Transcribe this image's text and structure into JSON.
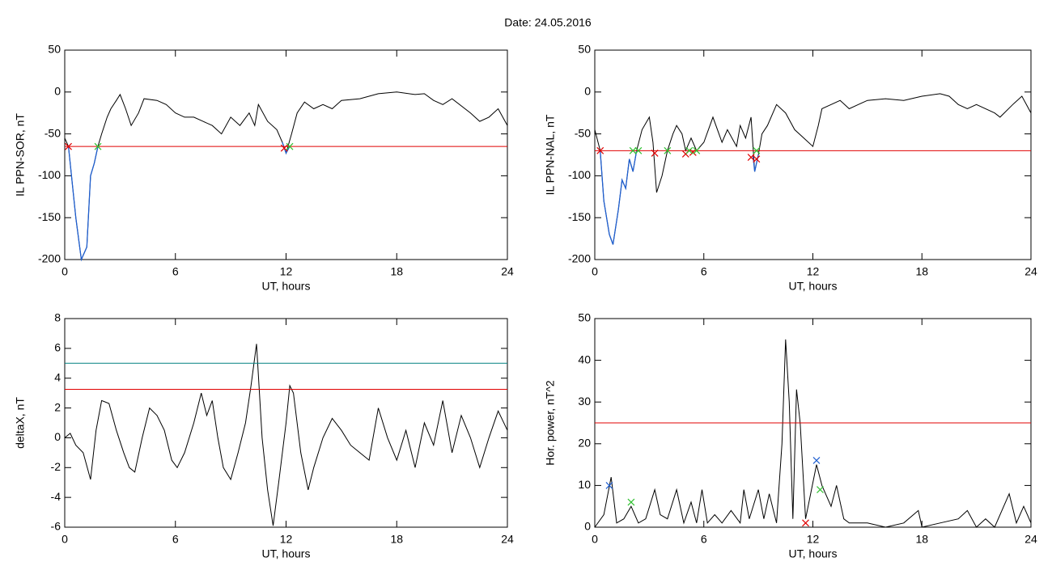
{
  "title": "Date:  24.05.2016",
  "chart_data": [
    {
      "type": "line",
      "xlabel": "UT, hours",
      "ylabel": "IL PPN-SOR, nT",
      "xlim": [
        0,
        24
      ],
      "ylim": [
        -200,
        50
      ],
      "xticks": [
        0,
        6,
        12,
        18,
        24
      ],
      "yticks": [
        -200,
        -150,
        -100,
        -50,
        0,
        50
      ],
      "x": [
        0,
        0.2,
        0.6,
        0.9,
        1.2,
        1.4,
        1.6,
        1.8,
        2.0,
        2.3,
        2.5,
        2.8,
        3.0,
        3.3,
        3.6,
        4.0,
        4.3,
        5.0,
        5.5,
        6.0,
        6.5,
        7.0,
        7.5,
        8.0,
        8.5,
        9.0,
        9.5,
        10.0,
        10.3,
        10.5,
        11.0,
        11.5,
        11.8,
        12.0,
        12.3,
        12.6,
        13.0,
        13.5,
        14.0,
        14.5,
        15.0,
        16.0,
        17.0,
        18.0,
        19.0,
        19.5,
        20.0,
        20.5,
        21.0,
        22.0,
        22.5,
        23.0,
        23.5,
        24.0
      ],
      "series": [
        {
          "color": "#000000",
          "values": [
            -55,
            -65,
            -150,
            -200,
            -185,
            -100,
            -85,
            -65,
            -50,
            -30,
            -20,
            -10,
            -3,
            -20,
            -40,
            -25,
            -8,
            -10,
            -15,
            -25,
            -30,
            -30,
            -35,
            -40,
            -50,
            -30,
            -40,
            -25,
            -40,
            -15,
            -35,
            -45,
            -60,
            -73,
            -50,
            -25,
            -12,
            -20,
            -15,
            -20,
            -10,
            -8,
            -2,
            0,
            -3,
            -2,
            -10,
            -15,
            -8,
            -25,
            -35,
            -30,
            -20,
            -40
          ]
        },
        {
          "color": "#1f5fd0",
          "x": [
            0.2,
            0.6,
            0.9,
            1.2,
            1.4,
            1.6,
            1.8
          ],
          "values": [
            -65,
            -150,
            -200,
            -185,
            -100,
            -85,
            -65
          ]
        },
        {
          "color": "#1f5fd0",
          "x": [
            11.8,
            12.0,
            12.2
          ],
          "values": [
            -60,
            -73,
            -65
          ]
        }
      ],
      "hlines": [
        {
          "value": -65,
          "color": "#e00000"
        }
      ],
      "markers": [
        {
          "color": "#e00000",
          "x": [
            0.2,
            11.9
          ],
          "values": [
            -65,
            -67
          ]
        },
        {
          "color": "#30c030",
          "x": [
            1.8,
            12.2
          ],
          "values": [
            -65,
            -65
          ]
        }
      ]
    },
    {
      "type": "line",
      "xlabel": "UT, hours",
      "ylabel": "IL PPN-NAL, nT",
      "xlim": [
        0,
        24
      ],
      "ylim": [
        -200,
        50
      ],
      "xticks": [
        0,
        6,
        12,
        18,
        24
      ],
      "yticks": [
        -200,
        -150,
        -100,
        -50,
        0,
        50
      ],
      "x": [
        0,
        0.3,
        0.5,
        0.8,
        1.0,
        1.3,
        1.5,
        1.7,
        1.9,
        2.1,
        2.3,
        2.6,
        3.0,
        3.2,
        3.4,
        3.7,
        4.0,
        4.3,
        4.5,
        4.8,
        5.0,
        5.3,
        5.6,
        6.0,
        6.5,
        7.0,
        7.3,
        7.8,
        8.0,
        8.3,
        8.6,
        8.8,
        9.0,
        9.2,
        9.5,
        10.0,
        10.5,
        11.0,
        11.5,
        12.0,
        12.3,
        12.5,
        13.0,
        13.5,
        14.0,
        14.5,
        15.0,
        16.0,
        17.0,
        18.0,
        19.0,
        19.5,
        20.0,
        20.5,
        21.0,
        22.0,
        22.3,
        23.0,
        23.5,
        24.0
      ],
      "series": [
        {
          "color": "#000000",
          "values": [
            -45,
            -70,
            -130,
            -170,
            -182,
            -140,
            -105,
            -115,
            -80,
            -95,
            -70,
            -45,
            -30,
            -60,
            -120,
            -100,
            -70,
            -50,
            -40,
            -50,
            -70,
            -55,
            -70,
            -60,
            -30,
            -60,
            -45,
            -65,
            -40,
            -55,
            -30,
            -95,
            -75,
            -50,
            -40,
            -15,
            -25,
            -45,
            -55,
            -65,
            -40,
            -20,
            -15,
            -10,
            -20,
            -15,
            -10,
            -8,
            -10,
            -5,
            -2,
            -5,
            -15,
            -20,
            -15,
            -25,
            -30,
            -15,
            -5,
            -25
          ]
        },
        {
          "color": "#1f5fd0",
          "x": [
            0.3,
            0.5,
            0.8,
            1.0,
            1.3,
            1.5,
            1.7,
            1.9,
            2.1,
            2.3
          ],
          "values": [
            -70,
            -130,
            -170,
            -182,
            -140,
            -105,
            -115,
            -80,
            -95,
            -70
          ]
        },
        {
          "color": "#1f5fd0",
          "x": [
            8.7,
            8.8,
            9.0
          ],
          "values": [
            -75,
            -95,
            -75
          ]
        }
      ],
      "hlines": [
        {
          "value": -70,
          "color": "#e00000"
        }
      ],
      "markers": [
        {
          "color": "#e00000",
          "x": [
            0.3,
            3.3,
            5.0,
            5.4,
            8.6,
            8.9
          ],
          "values": [
            -70,
            -73,
            -74,
            -72,
            -78,
            -80
          ]
        },
        {
          "color": "#30c030",
          "x": [
            2.1,
            2.4,
            4.0,
            5.2,
            5.6,
            8.9
          ],
          "values": [
            -70,
            -70,
            -70,
            -70,
            -70,
            -70
          ]
        }
      ]
    },
    {
      "type": "line",
      "xlabel": "UT, hours",
      "ylabel": "deltaX, nT",
      "xlim": [
        0,
        24
      ],
      "ylim": [
        -6,
        8
      ],
      "xticks": [
        0,
        6,
        12,
        18,
        24
      ],
      "yticks": [
        -6,
        -4,
        -2,
        0,
        2,
        4,
        6,
        8
      ],
      "x": [
        0,
        0.3,
        0.6,
        1.0,
        1.4,
        1.7,
        2.0,
        2.4,
        2.8,
        3.2,
        3.5,
        3.8,
        4.2,
        4.6,
        5.0,
        5.4,
        5.8,
        6.1,
        6.5,
        7.0,
        7.4,
        7.7,
        8.0,
        8.3,
        8.6,
        9.0,
        9.4,
        9.8,
        10.1,
        10.4,
        10.7,
        11.0,
        11.3,
        11.6,
        12.0,
        12.2,
        12.4,
        12.8,
        13.2,
        13.5,
        14.0,
        14.5,
        15.0,
        15.5,
        16.0,
        16.5,
        17.0,
        17.5,
        18.0,
        18.5,
        19.0,
        19.5,
        20.0,
        20.5,
        21.0,
        21.5,
        22.0,
        22.5,
        23.0,
        23.5,
        24.0
      ],
      "series": [
        {
          "color": "#000000",
          "values": [
            0,
            0.3,
            -0.5,
            -1,
            -2.8,
            0.5,
            2.5,
            2.3,
            0.5,
            -1,
            -2,
            -2.3,
            0,
            2,
            1.5,
            0.5,
            -1.5,
            -2,
            -1,
            1,
            3,
            1.5,
            2.5,
            0,
            -2,
            -2.8,
            -1,
            1,
            3.5,
            6.3,
            0,
            -3.5,
            -5.9,
            -3,
            1,
            3.5,
            3,
            -1,
            -3.5,
            -2,
            0,
            1.3,
            0.5,
            -0.5,
            -1,
            -1.5,
            2,
            0,
            -1.5,
            0.5,
            -2,
            1,
            -0.5,
            2.5,
            -1,
            1.5,
            0,
            -2,
            0,
            1.8,
            0.5
          ]
        }
      ],
      "hlines": [
        {
          "value": 3.25,
          "color": "#e00000"
        },
        {
          "value": 5,
          "color": "#008080"
        }
      ],
      "markers": []
    },
    {
      "type": "line",
      "xlabel": "UT, hours",
      "ylabel": "Hor. power, nT^2",
      "xlim": [
        0,
        24
      ],
      "ylim": [
        0,
        50
      ],
      "xticks": [
        0,
        6,
        12,
        18,
        24
      ],
      "yticks": [
        0,
        10,
        20,
        30,
        40,
        50
      ],
      "x": [
        0,
        0.5,
        0.9,
        1.2,
        1.6,
        2.0,
        2.4,
        2.8,
        3.3,
        3.6,
        4.0,
        4.5,
        4.9,
        5.3,
        5.6,
        5.9,
        6.2,
        6.6,
        7.0,
        7.5,
        8.0,
        8.2,
        8.5,
        9.0,
        9.3,
        9.6,
        10.0,
        10.3,
        10.5,
        10.7,
        10.9,
        11.1,
        11.3,
        11.6,
        12.2,
        12.5,
        13.0,
        13.3,
        13.7,
        14.0,
        15.0,
        16.0,
        17.0,
        17.8,
        18.0,
        19.0,
        20.0,
        20.5,
        21.0,
        21.5,
        22.0,
        22.8,
        23.2,
        23.6,
        24.0
      ],
      "series": [
        {
          "color": "#000000",
          "values": [
            0,
            3,
            12,
            1,
            2,
            5,
            1,
            2,
            9,
            3,
            2,
            9,
            1,
            6,
            1,
            9,
            1,
            3,
            1,
            4,
            1,
            9,
            2,
            9,
            2,
            8,
            1,
            20,
            45,
            30,
            2,
            33,
            25,
            2,
            15,
            10,
            5,
            10,
            2,
            1,
            1,
            0,
            1,
            4,
            0,
            1,
            2,
            4,
            0,
            2,
            0,
            8,
            1,
            5,
            1
          ]
        }
      ],
      "hlines": [
        {
          "value": 25,
          "color": "#e00000"
        }
      ],
      "markers": [
        {
          "color": "#1f5fd0",
          "x": [
            0.8,
            12.2
          ],
          "values": [
            10,
            16
          ]
        },
        {
          "color": "#30c030",
          "x": [
            2.0,
            12.4
          ],
          "values": [
            6,
            9
          ]
        },
        {
          "color": "#e00000",
          "x": [
            11.6
          ],
          "values": [
            1
          ]
        }
      ]
    }
  ]
}
